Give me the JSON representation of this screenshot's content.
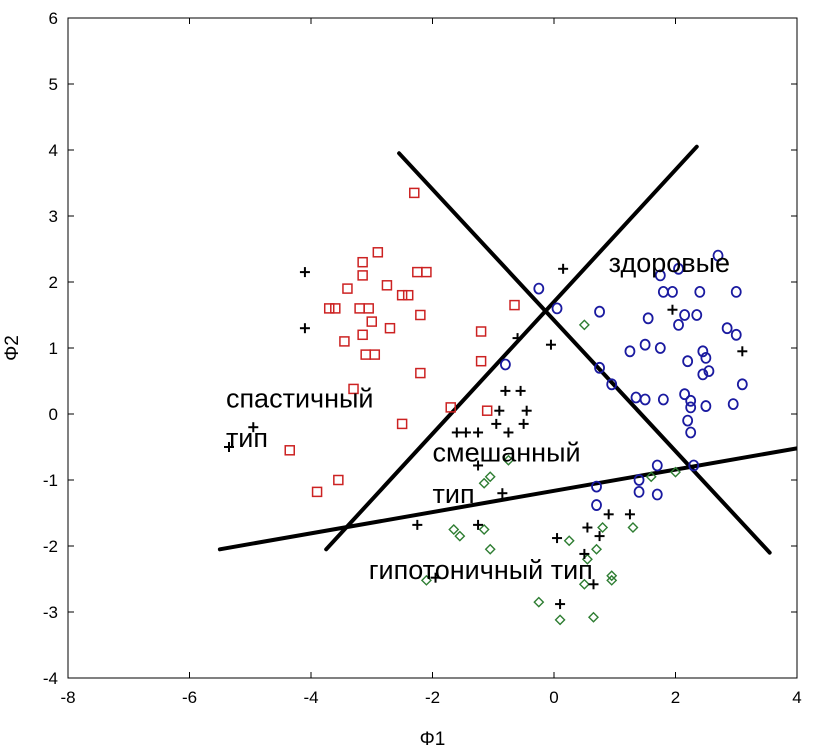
{
  "chart_data": {
    "type": "scatter",
    "xlabel": "Φ1",
    "ylabel": "Φ2",
    "xlim": [
      -8,
      4
    ],
    "ylim": [
      -4,
      6
    ],
    "x_ticks": [
      -8,
      -6,
      -4,
      -2,
      0,
      2,
      4
    ],
    "y_ticks": [
      -4,
      -3,
      -2,
      -1,
      0,
      1,
      2,
      3,
      4,
      5,
      6
    ],
    "x_tick_labels": [
      "-8",
      "-6",
      "-4",
      "-2",
      "0",
      "2",
      "4"
    ],
    "y_tick_labels": [
      "-4",
      "-3",
      "-2",
      "-1",
      "0",
      "1",
      "2",
      "3",
      "4",
      "5",
      "6"
    ],
    "grid": false,
    "legend": "none",
    "series": [
      {
        "marker": "square",
        "color": "#cc2222",
        "points": [
          [
            -2.3,
            3.35
          ],
          [
            -2.9,
            2.45
          ],
          [
            -3.15,
            2.3
          ],
          [
            -2.25,
            2.15
          ],
          [
            -2.1,
            2.15
          ],
          [
            -3.15,
            2.1
          ],
          [
            -2.75,
            1.95
          ],
          [
            -3.4,
            1.9
          ],
          [
            -2.5,
            1.8
          ],
          [
            -2.4,
            1.8
          ],
          [
            -3.6,
            1.6
          ],
          [
            -3.7,
            1.6
          ],
          [
            -3.2,
            1.6
          ],
          [
            -3.05,
            1.6
          ],
          [
            -2.2,
            1.5
          ],
          [
            -3.0,
            1.4
          ],
          [
            -2.7,
            1.3
          ],
          [
            -3.15,
            1.2
          ],
          [
            -3.45,
            1.1
          ],
          [
            -3.1,
            0.9
          ],
          [
            -2.95,
            0.9
          ],
          [
            -0.65,
            1.65
          ],
          [
            -1.2,
            1.25
          ],
          [
            -1.2,
            0.8
          ],
          [
            -2.2,
            0.62
          ],
          [
            -3.3,
            0.38
          ],
          [
            -1.7,
            0.1
          ],
          [
            -1.1,
            0.05
          ],
          [
            -2.5,
            -0.15
          ],
          [
            -4.35,
            -0.55
          ],
          [
            -3.55,
            -1.0
          ],
          [
            -3.9,
            -1.18
          ]
        ]
      },
      {
        "marker": "circle",
        "color": "#1a1aa0",
        "points": [
          [
            -0.25,
            1.9
          ],
          [
            0.05,
            1.6
          ],
          [
            0.75,
            1.55
          ],
          [
            1.75,
            2.1
          ],
          [
            2.05,
            2.2
          ],
          [
            2.7,
            2.4
          ],
          [
            1.8,
            1.85
          ],
          [
            1.95,
            1.85
          ],
          [
            2.4,
            1.85
          ],
          [
            3.0,
            1.85
          ],
          [
            1.55,
            1.45
          ],
          [
            2.15,
            1.5
          ],
          [
            2.35,
            1.5
          ],
          [
            2.05,
            1.35
          ],
          [
            2.85,
            1.3
          ],
          [
            3.0,
            1.2
          ],
          [
            1.5,
            1.05
          ],
          [
            1.75,
            1.0
          ],
          [
            1.25,
            0.95
          ],
          [
            2.45,
            0.95
          ],
          [
            2.5,
            0.85
          ],
          [
            2.2,
            0.8
          ],
          [
            2.55,
            0.65
          ],
          [
            2.45,
            0.6
          ],
          [
            -0.8,
            0.75
          ],
          [
            0.75,
            0.7
          ],
          [
            0.95,
            0.45
          ],
          [
            3.1,
            0.45
          ],
          [
            1.35,
            0.25
          ],
          [
            1.5,
            0.22
          ],
          [
            1.8,
            0.22
          ],
          [
            2.25,
            0.2
          ],
          [
            2.15,
            0.3
          ],
          [
            2.25,
            0.1
          ],
          [
            2.5,
            0.12
          ],
          [
            2.95,
            0.15
          ],
          [
            2.2,
            -0.1
          ],
          [
            2.25,
            -0.28
          ],
          [
            1.7,
            -0.78
          ],
          [
            2.3,
            -0.78
          ],
          [
            1.4,
            -1.0
          ],
          [
            0.7,
            -1.1
          ],
          [
            1.4,
            -1.18
          ],
          [
            1.7,
            -1.22
          ],
          [
            0.7,
            -1.38
          ]
        ]
      },
      {
        "marker": "diamond",
        "color": "#2e7d32",
        "points": [
          [
            0.5,
            1.35
          ],
          [
            1.6,
            -0.95
          ],
          [
            2.0,
            -0.88
          ],
          [
            -1.05,
            -0.95
          ],
          [
            -1.15,
            -1.05
          ],
          [
            -0.75,
            -0.7
          ],
          [
            -1.65,
            -1.75
          ],
          [
            -1.55,
            -1.85
          ],
          [
            -1.15,
            -1.75
          ],
          [
            -1.05,
            -2.05
          ],
          [
            1.3,
            -1.72
          ],
          [
            0.8,
            -1.72
          ],
          [
            0.25,
            -1.92
          ],
          [
            0.7,
            -2.05
          ],
          [
            0.55,
            -2.2
          ],
          [
            0.95,
            -2.45
          ],
          [
            0.95,
            -2.52
          ],
          [
            -2.1,
            -2.52
          ],
          [
            0.5,
            -2.58
          ],
          [
            -0.25,
            -2.85
          ],
          [
            0.1,
            -3.12
          ],
          [
            0.65,
            -3.08
          ]
        ]
      },
      {
        "marker": "plus",
        "color": "#000000",
        "points": [
          [
            -4.1,
            2.15
          ],
          [
            -4.1,
            1.3
          ],
          [
            0.15,
            2.2
          ],
          [
            1.95,
            1.58
          ],
          [
            -0.6,
            1.15
          ],
          [
            -0.05,
            1.05
          ],
          [
            3.1,
            0.95
          ],
          [
            -0.8,
            0.35
          ],
          [
            -0.55,
            0.35
          ],
          [
            -0.9,
            0.05
          ],
          [
            -0.45,
            0.05
          ],
          [
            -0.95,
            -0.15
          ],
          [
            -0.5,
            -0.15
          ],
          [
            -1.6,
            -0.28
          ],
          [
            -1.45,
            -0.28
          ],
          [
            -1.25,
            -0.28
          ],
          [
            -0.75,
            -0.28
          ],
          [
            -1.25,
            -0.78
          ],
          [
            -0.85,
            -1.2
          ],
          [
            -4.95,
            -0.2
          ],
          [
            -5.35,
            -0.5
          ],
          [
            -2.25,
            -1.68
          ],
          [
            -1.25,
            -1.68
          ],
          [
            0.55,
            -1.72
          ],
          [
            0.9,
            -1.52
          ],
          [
            1.25,
            -1.52
          ],
          [
            0.05,
            -1.88
          ],
          [
            0.75,
            -1.85
          ],
          [
            0.5,
            -2.12
          ],
          [
            -1.95,
            -2.48
          ],
          [
            0.65,
            -2.58
          ],
          [
            0.1,
            -2.88
          ]
        ]
      }
    ],
    "lines": [
      {
        "from": [
          -5.5,
          -2.05
        ],
        "to": [
          4.0,
          -0.52
        ]
      },
      {
        "from": [
          -3.75,
          -2.05
        ],
        "to": [
          2.35,
          4.05
        ]
      },
      {
        "from": [
          -2.55,
          3.95
        ],
        "to": [
          3.55,
          -2.1
        ]
      }
    ],
    "annotations": [
      {
        "text": "здоровые",
        "x": 0.9,
        "y": 2.15
      },
      {
        "text": "спастичный",
        "x": -5.4,
        "y": 0.1
      },
      {
        "text": "тип",
        "x": -5.4,
        "y": -0.5
      },
      {
        "text": "смешанный",
        "x": -2.0,
        "y": -0.72
      },
      {
        "text": "тип",
        "x": -2.0,
        "y": -1.35
      },
      {
        "text": "гипотоничный тип",
        "x": -3.05,
        "y": -2.5
      }
    ]
  }
}
